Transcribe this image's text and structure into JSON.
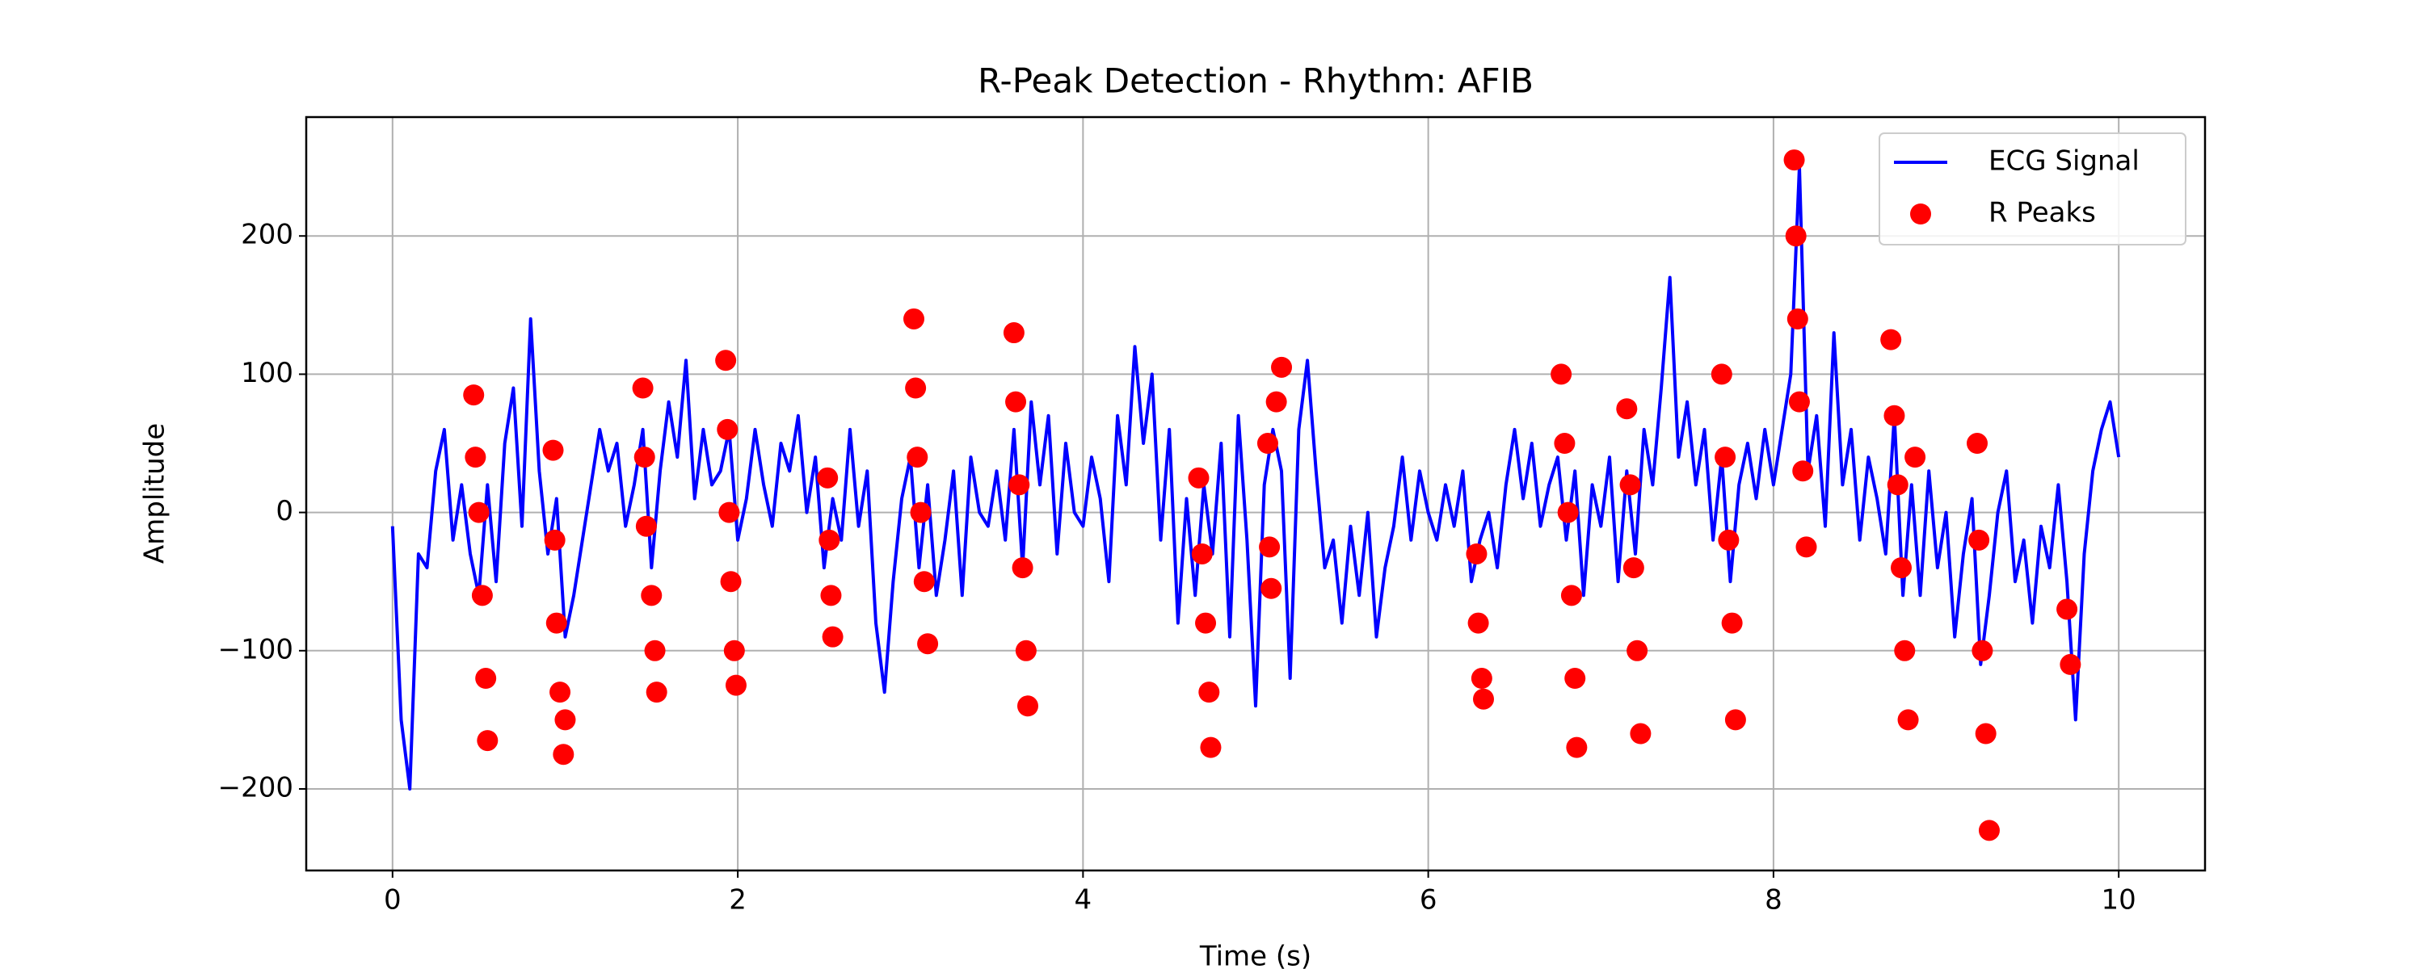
{
  "chart_data": {
    "type": "line",
    "title": "R-Peak Detection - Rhythm: AFIB",
    "x_label": "Time (s)",
    "y_label": "Amplitude",
    "xlim": [
      -0.5,
      10.5
    ],
    "ylim": [
      -259,
      286
    ],
    "xticks": [
      0,
      2,
      4,
      6,
      8,
      10
    ],
    "yticks": [
      {
        "value": -200,
        "label": "−200"
      },
      {
        "value": -100,
        "label": "−100"
      },
      0,
      100,
      200
    ],
    "grid": true,
    "legend": "upper right",
    "series": [
      {
        "name": "ECG Signal",
        "type": "line",
        "color": "#0000ff",
        "x": [
          0,
          0.05,
          0.1,
          0.15,
          0.2,
          0.25,
          0.3,
          0.35,
          0.4,
          0.45,
          0.5,
          0.55,
          0.6,
          0.65,
          0.7,
          0.75,
          0.8,
          0.85,
          0.9,
          0.95,
          1,
          1.05,
          1.1,
          1.15,
          1.2,
          1.25,
          1.3,
          1.35,
          1.4,
          1.45,
          1.5,
          1.55,
          1.6,
          1.65,
          1.7,
          1.75,
          1.8,
          1.85,
          1.9,
          1.95,
          2,
          2.05,
          2.1,
          2.15,
          2.2,
          2.25,
          2.3,
          2.35,
          2.4,
          2.45,
          2.5,
          2.55,
          2.6,
          2.65,
          2.7,
          2.75,
          2.8,
          2.85,
          2.9,
          2.95,
          3,
          3.05,
          3.1,
          3.15,
          3.2,
          3.25,
          3.3,
          3.35,
          3.4,
          3.45,
          3.5,
          3.55,
          3.6,
          3.65,
          3.7,
          3.75,
          3.8,
          3.85,
          3.9,
          3.95,
          4,
          4.05,
          4.1,
          4.15,
          4.2,
          4.25,
          4.3,
          4.35,
          4.4,
          4.45,
          4.5,
          4.55,
          4.6,
          4.65,
          4.7,
          4.75,
          4.8,
          4.85,
          4.9,
          4.95,
          5,
          5.05,
          5.1,
          5.15,
          5.2,
          5.25,
          5.3,
          5.35,
          5.4,
          5.45,
          5.5,
          5.55,
          5.6,
          5.65,
          5.7,
          5.75,
          5.8,
          5.85,
          5.9,
          5.95,
          6,
          6.05,
          6.1,
          6.15,
          6.2,
          6.25,
          6.3,
          6.35,
          6.4,
          6.45,
          6.5,
          6.55,
          6.6,
          6.65,
          6.7,
          6.75,
          6.8,
          6.85,
          6.9,
          6.95,
          7,
          7.05,
          7.1,
          7.15,
          7.2,
          7.25,
          7.3,
          7.35,
          7.4,
          7.45,
          7.5,
          7.55,
          7.6,
          7.65,
          7.7,
          7.75,
          7.8,
          7.85,
          7.9,
          7.95,
          8,
          8.05,
          8.1,
          8.15,
          8.2,
          8.25,
          8.3,
          8.35,
          8.4,
          8.45,
          8.5,
          8.55,
          8.6,
          8.65,
          8.7,
          8.75,
          8.8,
          8.85,
          8.9,
          8.95,
          9,
          9.05,
          9.1,
          9.15,
          9.2,
          9.25,
          9.3,
          9.35,
          9.4,
          9.45,
          9.5,
          9.55,
          9.6,
          9.65,
          9.7,
          9.75,
          9.8,
          9.85,
          9.9,
          9.95,
          10
        ],
        "y": [
          -10,
          -150,
          -200,
          -30,
          -40,
          30,
          60,
          -20,
          20,
          -30,
          -60,
          20,
          -50,
          50,
          90,
          -10,
          140,
          30,
          -30,
          10,
          -90,
          -60,
          -20,
          20,
          60,
          30,
          50,
          -10,
          20,
          60,
          -40,
          30,
          80,
          40,
          110,
          10,
          60,
          20,
          30,
          60,
          -20,
          10,
          60,
          20,
          -10,
          50,
          30,
          70,
          0,
          40,
          -40,
          10,
          -20,
          60,
          -10,
          30,
          -80,
          -130,
          -50,
          10,
          40,
          -40,
          20,
          -60,
          -20,
          30,
          -60,
          40,
          0,
          -10,
          30,
          -20,
          60,
          -40,
          80,
          20,
          70,
          -30,
          50,
          0,
          -10,
          40,
          10,
          -50,
          70,
          20,
          120,
          50,
          100,
          -20,
          60,
          -80,
          10,
          -60,
          20,
          -30,
          50,
          -90,
          70,
          -20,
          -140,
          20,
          60,
          30,
          -120,
          60,
          110,
          30,
          -40,
          -20,
          -80,
          -10,
          -60,
          0,
          -90,
          -40,
          -10,
          40,
          -20,
          30,
          0,
          -20,
          20,
          -10,
          30,
          -50,
          -20,
          0,
          -40,
          20,
          60,
          10,
          50,
          -10,
          20,
          40,
          -20,
          30,
          -60,
          20,
          -10,
          40,
          -50,
          30,
          -30,
          60,
          20,
          90,
          170,
          40,
          80,
          20,
          60,
          -20,
          40,
          -50,
          20,
          50,
          10,
          60,
          20,
          60,
          100,
          250,
          30,
          70,
          -10,
          130,
          20,
          60,
          -20,
          40,
          10,
          -30,
          70,
          -60,
          20,
          -60,
          30,
          -40,
          0,
          -90,
          -30,
          10,
          -110,
          -60,
          0,
          30,
          -50,
          -20,
          -80,
          -10,
          -40,
          20,
          -50,
          -150,
          -30,
          30,
          60,
          80,
          40
        ]
      },
      {
        "name": "R Peaks",
        "type": "scatter",
        "color": "#ff0000",
        "x": [
          0.47,
          0.48,
          0.5,
          0.52,
          0.54,
          0.55,
          0.93,
          0.94,
          0.95,
          0.97,
          0.99,
          1.0,
          1.45,
          1.46,
          1.47,
          1.5,
          1.52,
          1.53,
          1.93,
          1.94,
          1.95,
          1.96,
          1.98,
          1.99,
          2.52,
          2.53,
          2.54,
          2.55,
          3.02,
          3.03,
          3.04,
          3.06,
          3.08,
          3.1,
          3.6,
          3.61,
          3.63,
          3.65,
          3.67,
          3.68,
          4.67,
          4.69,
          4.71,
          4.73,
          4.74,
          5.07,
          5.08,
          5.09,
          5.12,
          5.15,
          6.28,
          6.29,
          6.31,
          6.32,
          6.77,
          6.79,
          6.81,
          6.83,
          6.85,
          6.86,
          7.15,
          7.17,
          7.19,
          7.21,
          7.23,
          7.7,
          7.72,
          7.74,
          7.76,
          7.78,
          8.12,
          8.13,
          8.14,
          8.15,
          8.17,
          8.19,
          8.68,
          8.7,
          8.72,
          8.74,
          8.76,
          8.78,
          8.82,
          9.18,
          9.19,
          9.21,
          9.23,
          9.25,
          9.7,
          9.72
        ],
        "y": [
          85,
          40,
          0,
          -60,
          -120,
          -165,
          45,
          -20,
          -80,
          -130,
          -175,
          -150,
          90,
          40,
          -10,
          -60,
          -100,
          -130,
          110,
          60,
          0,
          -50,
          -100,
          -125,
          25,
          -20,
          -60,
          -90,
          140,
          90,
          40,
          0,
          -50,
          -95,
          130,
          80,
          20,
          -40,
          -100,
          -140,
          25,
          -30,
          -80,
          -130,
          -170,
          50,
          -25,
          -55,
          80,
          105,
          -30,
          -80,
          -120,
          -135,
          100,
          50,
          0,
          -60,
          -120,
          -170,
          75,
          20,
          -40,
          -100,
          -160,
          100,
          40,
          -20,
          -80,
          -150,
          255,
          200,
          140,
          80,
          30,
          -25,
          125,
          70,
          20,
          -40,
          -100,
          -150,
          40,
          50,
          -20,
          -100,
          -160,
          -230,
          -70,
          -110
        ]
      }
    ]
  }
}
